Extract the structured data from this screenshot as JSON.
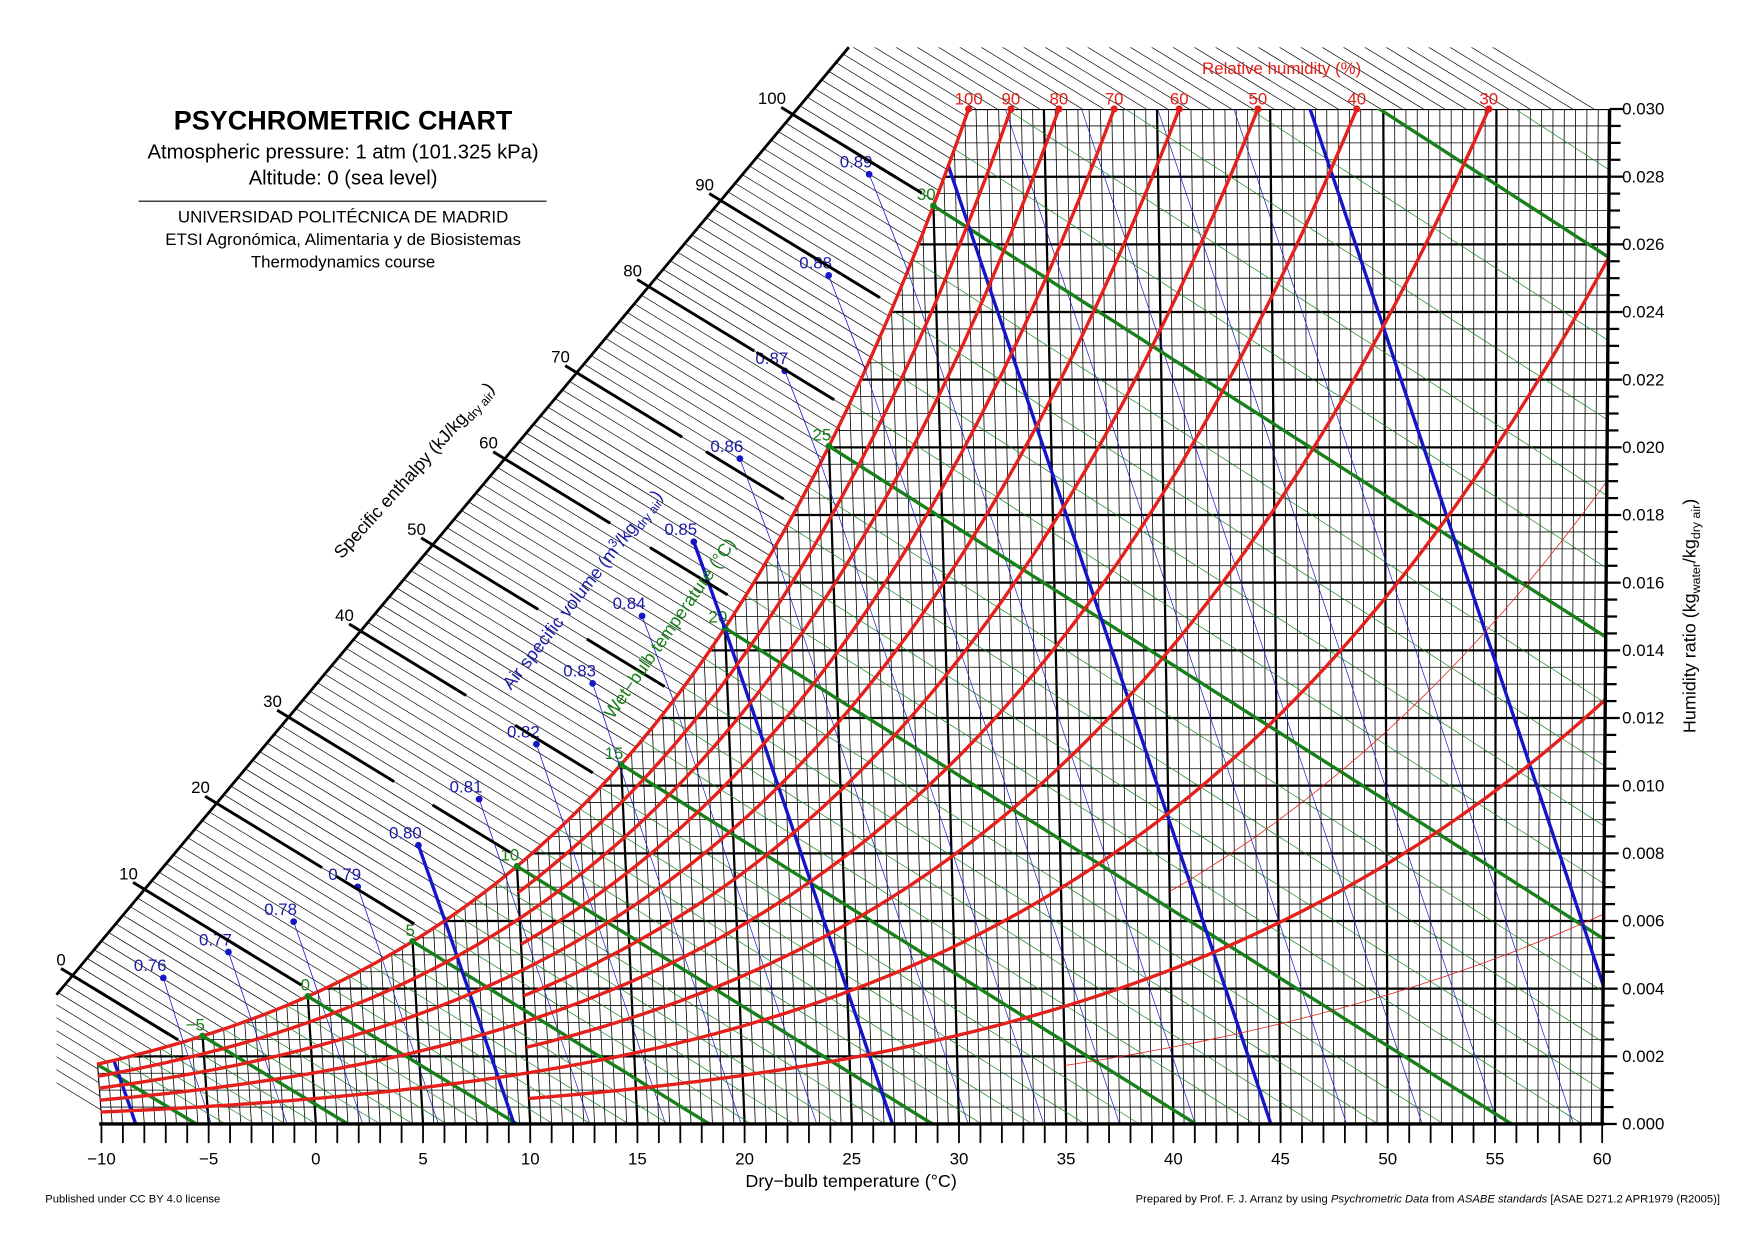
{
  "title_block": {
    "title": "PSYCHROMETRIC CHART",
    "pressure": "Atmospheric pressure: 1 atm (101.325 kPa)",
    "altitude": "Altitude: 0 (sea level)",
    "university": "UNIVERSIDAD POLITÉCNICA DE MADRID",
    "school": "ETSI Agronómica, Alimentaria y de Biosistemas",
    "course": "Thermodynamics course"
  },
  "footer": {
    "license": "Published under CC BY 4.0 license",
    "credit_prefix": "Prepared by Prof. F. J. Arranz by using ",
    "credit_italic1": "Psychrometric Data",
    "credit_mid": " from ",
    "credit_italic2": "ASABE standards",
    "credit_suffix": " [ASAE D271.2 APR1979 (R2005)]"
  },
  "chart_data": {
    "type": "psychrometric",
    "pressure_kpa": 101.325,
    "x_axis": {
      "label": "Dry−bulb temperature (°C)",
      "range": [
        -10,
        60
      ],
      "major_step": 5,
      "minor_step": 1,
      "ticks": [
        "−10",
        "−5",
        "0",
        "5",
        "10",
        "15",
        "20",
        "25",
        "30",
        "35",
        "40",
        "45",
        "50",
        "55",
        "60"
      ]
    },
    "y_axis": {
      "side": "right",
      "label_main": "Humidity ratio (kg",
      "label_sub1": "water",
      "label_mid": "/kg",
      "label_sub2": "dry air",
      "label_end": ")",
      "range": [
        0,
        0.03
      ],
      "minor_step": 0.0005,
      "ticks": [
        "0.000",
        "0.002",
        "0.004",
        "0.006",
        "0.008",
        "0.010",
        "0.012",
        "0.014",
        "0.016",
        "0.018",
        "0.020",
        "0.022",
        "0.024",
        "0.026",
        "0.028",
        "0.030"
      ]
    },
    "enthalpy": {
      "label_main": "Specific enthalpy (kJ/kg",
      "label_sub": "dry air",
      "label_end": ")",
      "minor_step": 1,
      "ticks": [
        "0",
        "10",
        "20",
        "30",
        "40",
        "50",
        "60",
        "70",
        "80",
        "90",
        "100"
      ]
    },
    "relative_humidity": {
      "title": "Relative humidity (%)",
      "labels": [
        "100",
        "90",
        "80",
        "70",
        "60",
        "50",
        "40",
        "30"
      ],
      "curves": [
        {
          "rh": 100,
          "from_t": -10
        },
        {
          "rh": 90,
          "from_t": 10
        },
        {
          "rh": 80,
          "from_t": -10
        },
        {
          "rh": 70,
          "from_t": 10
        },
        {
          "rh": 60,
          "from_t": -10
        },
        {
          "rh": 50,
          "from_t": 10
        },
        {
          "rh": 40,
          "from_t": -10
        },
        {
          "rh": 30,
          "from_t": 10
        },
        {
          "rh": 20,
          "from_t": -10
        },
        {
          "rh": 10,
          "from_t": 10
        }
      ],
      "thin_curves": [
        {
          "rh": 15,
          "from_t": 40
        },
        {
          "rh": 5,
          "from_t": 35
        }
      ]
    },
    "wet_bulb": {
      "label": "Wet−bulb temperature (°C)",
      "range": [
        -10,
        40
      ],
      "major_step": 5,
      "minor_step": 1,
      "labels": [
        "−5",
        "0",
        "5",
        "10",
        "15",
        "20",
        "25",
        "30"
      ]
    },
    "specific_volume": {
      "label_main": "Air specific volume (m",
      "label_sup": "3",
      "label_mid": "/kg",
      "label_sub": "dry air",
      "label_end": ")",
      "range": [
        0.75,
        0.95
      ],
      "minor_step": 0.01,
      "major": [
        0.75,
        0.8,
        0.85,
        0.9,
        0.95
      ],
      "labels": [
        "0.76",
        "0.77",
        "0.78",
        "0.79",
        "0.80",
        "0.81",
        "0.82",
        "0.83",
        "0.84",
        "0.85",
        "0.86",
        "0.87",
        "0.88",
        "0.89"
      ]
    },
    "grid": true,
    "colors": {
      "relative_humidity": "#e3201b",
      "wet_bulb": "#17801a",
      "specific_volume": "#1515c8",
      "volume_text": "#1c1ca8",
      "grid": "#000000"
    }
  }
}
